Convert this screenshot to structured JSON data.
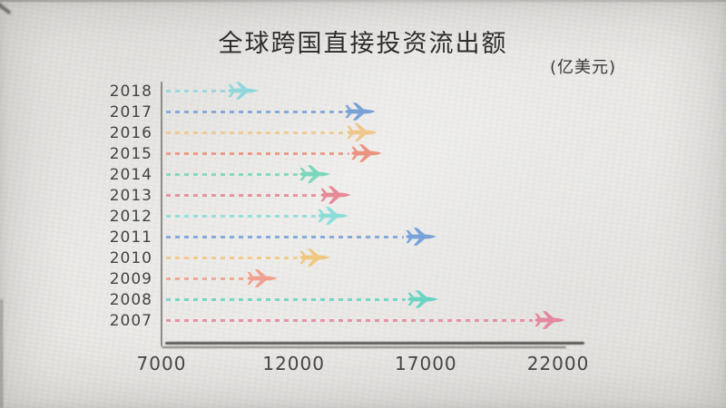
{
  "page": {
    "paper_color": "#e8e7e4",
    "axis_color": "#3c3a37",
    "text_color": "#454443"
  },
  "chart_data": {
    "type": "scatter",
    "subtype": "horizontal-lollipop-airplane",
    "title": "全球跨国直接投资流出额",
    "unit_label": "(亿美元)",
    "xlabel": "",
    "ylabel": "",
    "xlim": [
      7000,
      22000
    ],
    "xticks": [
      7000,
      12000,
      17000,
      22000
    ],
    "grid": false,
    "marker": "airplane-icon",
    "line_style": "dashed",
    "categories": [
      "2018",
      "2017",
      "2016",
      "2015",
      "2014",
      "2013",
      "2012",
      "2011",
      "2010",
      "2009",
      "2008",
      "2007"
    ],
    "values": [
      10100,
      14500,
      14600,
      14750,
      12800,
      13600,
      13500,
      16800,
      12800,
      10800,
      16900,
      21700
    ],
    "colors": [
      "#8ad5dc",
      "#6e9ad4",
      "#f0c382",
      "#ec8a76",
      "#6ed6b8",
      "#e7808e",
      "#82dcd8",
      "#6b9ad8",
      "#f0c475",
      "#f09a86",
      "#5cd3c0",
      "#e57f97"
    ]
  }
}
